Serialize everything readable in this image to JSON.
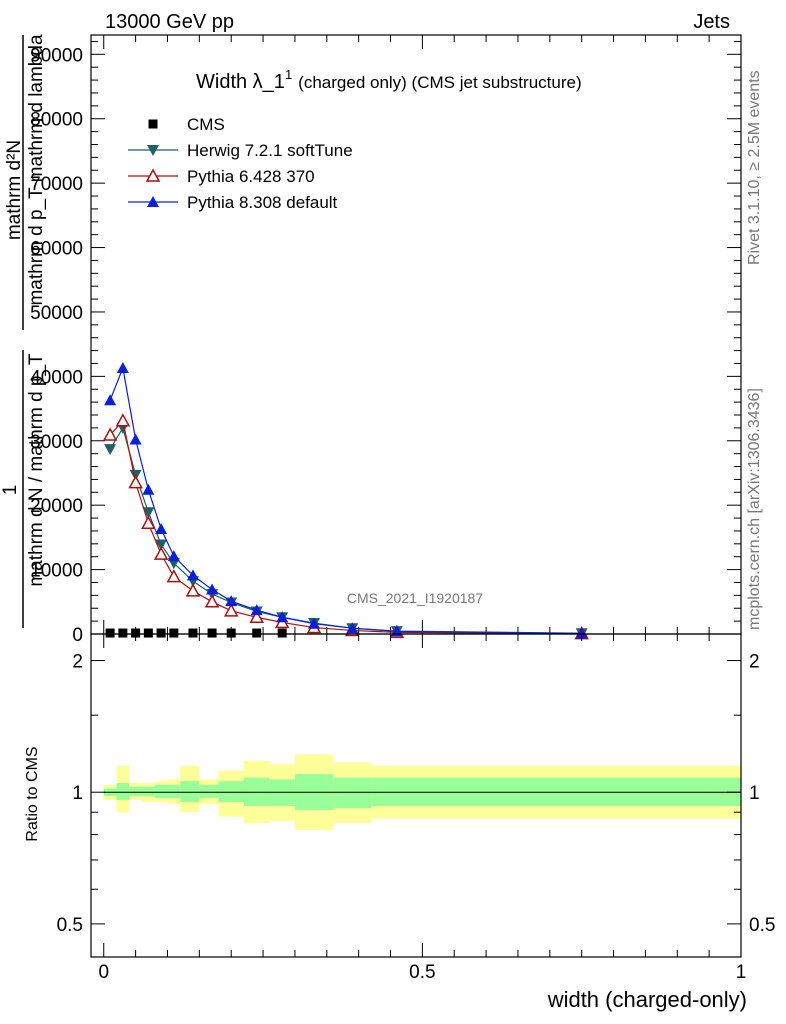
{
  "header": {
    "left": "13000 GeV pp",
    "right": "Jets"
  },
  "side": {
    "rivet": "Rivet 3.1.10, ≥ 2.5M events",
    "mcplots": "mcplots.cern.ch [arXiv:1306.3436]"
  },
  "chart_data": [
    {
      "type": "line",
      "title": "Width λ_1",
      "title_sup": "1",
      "title_note": "(charged only) (CMS jet substructure)",
      "ylabel_lines": [
        "mathrm d²N",
        "mathrm d p_T mathrm d lambda",
        "1",
        "mathrm d N / mathrm d p_T"
      ],
      "watermark": "CMS_2021_I1920187",
      "ylim": [
        0,
        93000
      ],
      "xlim": [
        -0.02,
        1.0
      ],
      "yticks": [
        "0",
        "10000",
        "20000",
        "30000",
        "40000",
        "50000",
        "60000",
        "70000",
        "80000",
        "90000"
      ],
      "legend": [
        "CMS",
        "Herwig 7.2.1 softTune",
        "Pythia 6.428 370",
        "Pythia 8.308 default"
      ],
      "legend_position": "top-left",
      "colors": {
        "cms": "#000000",
        "herwig": "#1f5f66",
        "pythia6": "#aa1111",
        "pythia8": "#0a1fd6"
      },
      "series": [
        {
          "name": "CMS",
          "x": [
            0.01,
            0.03,
            0.05,
            0.07,
            0.09,
            0.11,
            0.14,
            0.17,
            0.2,
            0.24,
            0.28
          ],
          "y": [
            150,
            150,
            150,
            150,
            150,
            150,
            150,
            150,
            150,
            150,
            150
          ]
        },
        {
          "name": "Herwig 7.2.1 softTune",
          "x": [
            0.01,
            0.03,
            0.05,
            0.07,
            0.09,
            0.11,
            0.14,
            0.17,
            0.2,
            0.24,
            0.28,
            0.33,
            0.39,
            0.46,
            0.75
          ],
          "y": [
            28700,
            32000,
            24700,
            18900,
            13900,
            11000,
            8200,
            6200,
            4900,
            3500,
            2600,
            1700,
            900,
            450,
            120
          ]
        },
        {
          "name": "Pythia 6.428 370",
          "x": [
            0.01,
            0.03,
            0.05,
            0.07,
            0.09,
            0.11,
            0.14,
            0.17,
            0.2,
            0.24,
            0.28,
            0.33,
            0.39,
            0.46,
            0.75
          ],
          "y": [
            30900,
            33100,
            23500,
            17200,
            12400,
            8900,
            6700,
            5000,
            3600,
            2600,
            1800,
            1000,
            550,
            250,
            60
          ]
        },
        {
          "name": "Pythia 8.308 default",
          "x": [
            0.01,
            0.03,
            0.05,
            0.07,
            0.09,
            0.11,
            0.14,
            0.17,
            0.2,
            0.24,
            0.28,
            0.33,
            0.39,
            0.46,
            0.75
          ],
          "y": [
            36300,
            41300,
            30200,
            22400,
            16300,
            12100,
            9100,
            6900,
            5100,
            3700,
            2600,
            1600,
            900,
            400,
            90
          ]
        }
      ]
    },
    {
      "type": "area",
      "ylabel": "Ratio to CMS",
      "xlabel": "width (charged-only)",
      "xlim": [
        -0.02,
        1.0
      ],
      "ylim": [
        0.42,
        2.3
      ],
      "log_y": true,
      "yticks": [
        "0.5",
        "1",
        "2"
      ],
      "xticks": [
        "0",
        "0.5",
        "1"
      ],
      "reference": 1,
      "colors": {
        "outer": "#ffff99",
        "inner": "#99ff99"
      },
      "bins": [
        {
          "lo": 0.0,
          "hi": 0.02,
          "inner": [
            0.98,
            1.02
          ],
          "outer": [
            0.96,
            1.04
          ]
        },
        {
          "lo": 0.02,
          "hi": 0.04,
          "inner": [
            0.96,
            1.05
          ],
          "outer": [
            0.9,
            1.15
          ]
        },
        {
          "lo": 0.04,
          "hi": 0.06,
          "inner": [
            0.98,
            1.03
          ],
          "outer": [
            0.96,
            1.05
          ]
        },
        {
          "lo": 0.06,
          "hi": 0.08,
          "inner": [
            0.98,
            1.03
          ],
          "outer": [
            0.95,
            1.05
          ]
        },
        {
          "lo": 0.08,
          "hi": 0.1,
          "inner": [
            0.97,
            1.04
          ],
          "outer": [
            0.95,
            1.06
          ]
        },
        {
          "lo": 0.1,
          "hi": 0.12,
          "inner": [
            0.97,
            1.04
          ],
          "outer": [
            0.94,
            1.07
          ]
        },
        {
          "lo": 0.12,
          "hi": 0.15,
          "inner": [
            0.95,
            1.06
          ],
          "outer": [
            0.9,
            1.15
          ]
        },
        {
          "lo": 0.15,
          "hi": 0.18,
          "inner": [
            0.97,
            1.04
          ],
          "outer": [
            0.94,
            1.07
          ]
        },
        {
          "lo": 0.18,
          "hi": 0.22,
          "inner": [
            0.95,
            1.06
          ],
          "outer": [
            0.88,
            1.12
          ]
        },
        {
          "lo": 0.22,
          "hi": 0.26,
          "inner": [
            0.93,
            1.08
          ],
          "outer": [
            0.85,
            1.18
          ]
        },
        {
          "lo": 0.26,
          "hi": 0.3,
          "inner": [
            0.93,
            1.07
          ],
          "outer": [
            0.86,
            1.16
          ]
        },
        {
          "lo": 0.3,
          "hi": 0.36,
          "inner": [
            0.91,
            1.1
          ],
          "outer": [
            0.82,
            1.22
          ]
        },
        {
          "lo": 0.36,
          "hi": 0.42,
          "inner": [
            0.92,
            1.08
          ],
          "outer": [
            0.85,
            1.17
          ]
        },
        {
          "lo": 0.42,
          "hi": 1.0,
          "inner": [
            0.93,
            1.08
          ],
          "outer": [
            0.87,
            1.15
          ]
        }
      ]
    }
  ]
}
